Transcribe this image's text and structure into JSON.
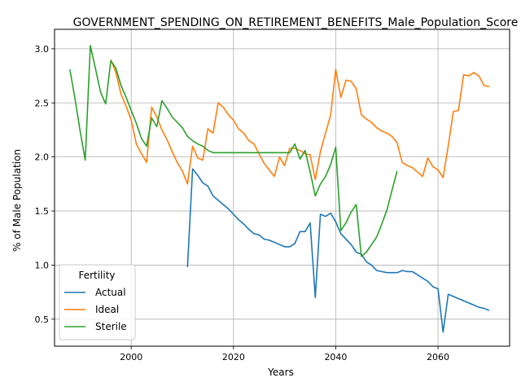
{
  "chart_data": {
    "type": "line",
    "title": "GOVERNMENT_SPENDING_ON_RETIREMENT_BENEFITS_Male_Population_Score",
    "xlabel": "Years",
    "ylabel": "% of Male Population",
    "xlim": [
      1985,
      2074
    ],
    "ylim": [
      0.25,
      3.18
    ],
    "xticks": [
      2000,
      2020,
      2040,
      2060
    ],
    "yticks": [
      0.5,
      1.0,
      1.5,
      2.0,
      2.5,
      3.0
    ],
    "xtick_labels": [
      "2000",
      "2020",
      "2040",
      "2060"
    ],
    "ytick_labels": [
      "0.5",
      "1.0",
      "1.5",
      "2.0",
      "2.5",
      "3.0"
    ],
    "grid": true,
    "legend": {
      "title": "Fertility",
      "position": "lower-left"
    },
    "series": [
      {
        "name": "Actual",
        "color": "#1f77b4",
        "points": [
          [
            2011,
            0.98
          ],
          [
            2012,
            1.89
          ],
          [
            2013,
            1.83
          ],
          [
            2014,
            1.76
          ],
          [
            2015,
            1.73
          ],
          [
            2016,
            1.64
          ],
          [
            2017,
            1.6
          ],
          [
            2018,
            1.56
          ],
          [
            2019,
            1.52
          ],
          [
            2020,
            1.47
          ],
          [
            2021,
            1.42
          ],
          [
            2022,
            1.38
          ],
          [
            2023,
            1.33
          ],
          [
            2024,
            1.29
          ],
          [
            2025,
            1.28
          ],
          [
            2026,
            1.24
          ],
          [
            2027,
            1.23
          ],
          [
            2028,
            1.21
          ],
          [
            2029,
            1.19
          ],
          [
            2030,
            1.17
          ],
          [
            2031,
            1.17
          ],
          [
            2032,
            1.2
          ],
          [
            2033,
            1.31
          ],
          [
            2034,
            1.31
          ],
          [
            2035,
            1.39
          ],
          [
            2036,
            0.7
          ],
          [
            2037,
            1.47
          ],
          [
            2038,
            1.45
          ],
          [
            2039,
            1.48
          ],
          [
            2040,
            1.4
          ],
          [
            2041,
            1.29
          ],
          [
            2042,
            1.24
          ],
          [
            2043,
            1.19
          ],
          [
            2044,
            1.12
          ],
          [
            2045,
            1.1
          ],
          [
            2046,
            1.03
          ],
          [
            2047,
            1.0
          ],
          [
            2048,
            0.95
          ],
          [
            2049,
            0.94
          ],
          [
            2050,
            0.93
          ],
          [
            2051,
            0.93
          ],
          [
            2052,
            0.93
          ],
          [
            2053,
            0.95
          ],
          [
            2054,
            0.94
          ],
          [
            2055,
            0.94
          ],
          [
            2056,
            0.91
          ],
          [
            2057,
            0.88
          ],
          [
            2058,
            0.85
          ],
          [
            2059,
            0.8
          ],
          [
            2060,
            0.78
          ],
          [
            2061,
            0.38
          ],
          [
            2062,
            0.73
          ],
          [
            2063,
            0.71
          ],
          [
            2064,
            0.69
          ],
          [
            2065,
            0.67
          ],
          [
            2066,
            0.65
          ],
          [
            2067,
            0.63
          ],
          [
            2068,
            0.61
          ],
          [
            2069,
            0.6
          ],
          [
            2070,
            0.58
          ]
        ]
      },
      {
        "name": "Ideal",
        "color": "#ff7f0e",
        "points": [
          [
            1996,
            2.9
          ],
          [
            1997,
            2.78
          ],
          [
            1998,
            2.58
          ],
          [
            1999,
            2.47
          ],
          [
            2000,
            2.34
          ],
          [
            2001,
            2.12
          ],
          [
            2002,
            2.03
          ],
          [
            2003,
            1.95
          ],
          [
            2004,
            2.46
          ],
          [
            2005,
            2.37
          ],
          [
            2006,
            2.25
          ],
          [
            2007,
            2.16
          ],
          [
            2008,
            2.05
          ],
          [
            2009,
            1.95
          ],
          [
            2010,
            1.87
          ],
          [
            2011,
            1.75
          ],
          [
            2012,
            2.1
          ],
          [
            2013,
            1.99
          ],
          [
            2014,
            1.97
          ],
          [
            2015,
            2.26
          ],
          [
            2016,
            2.22
          ],
          [
            2017,
            2.5
          ],
          [
            2018,
            2.46
          ],
          [
            2019,
            2.39
          ],
          [
            2020,
            2.34
          ],
          [
            2021,
            2.26
          ],
          [
            2022,
            2.22
          ],
          [
            2023,
            2.15
          ],
          [
            2024,
            2.12
          ],
          [
            2025,
            2.03
          ],
          [
            2026,
            1.94
          ],
          [
            2027,
            1.88
          ],
          [
            2028,
            1.82
          ],
          [
            2029,
            2.0
          ],
          [
            2030,
            1.92
          ],
          [
            2031,
            2.08
          ],
          [
            2032,
            2.08
          ],
          [
            2033,
            2.06
          ],
          [
            2034,
            2.03
          ],
          [
            2035,
            2.02
          ],
          [
            2036,
            1.79
          ],
          [
            2037,
            2.05
          ],
          [
            2038,
            2.22
          ],
          [
            2039,
            2.39
          ],
          [
            2040,
            2.81
          ],
          [
            2041,
            2.55
          ],
          [
            2042,
            2.71
          ],
          [
            2043,
            2.7
          ],
          [
            2044,
            2.63
          ],
          [
            2045,
            2.39
          ],
          [
            2046,
            2.35
          ],
          [
            2047,
            2.32
          ],
          [
            2048,
            2.27
          ],
          [
            2049,
            2.24
          ],
          [
            2050,
            2.22
          ],
          [
            2051,
            2.19
          ],
          [
            2052,
            2.13
          ],
          [
            2053,
            1.95
          ],
          [
            2054,
            1.92
          ],
          [
            2055,
            1.9
          ],
          [
            2056,
            1.86
          ],
          [
            2057,
            1.82
          ],
          [
            2058,
            1.99
          ],
          [
            2059,
            1.91
          ],
          [
            2060,
            1.88
          ],
          [
            2061,
            1.81
          ],
          [
            2062,
            2.1
          ],
          [
            2063,
            2.42
          ],
          [
            2064,
            2.43
          ],
          [
            2065,
            2.76
          ],
          [
            2066,
            2.75
          ],
          [
            2067,
            2.78
          ],
          [
            2068,
            2.75
          ],
          [
            2069,
            2.66
          ],
          [
            2070,
            2.65
          ]
        ]
      },
      {
        "name": "Sterile",
        "color": "#2ca02c",
        "points": [
          [
            1988,
            2.81
          ],
          [
            1989,
            2.54
          ],
          [
            1990,
            2.24
          ],
          [
            1991,
            1.97
          ],
          [
            1992,
            3.03
          ],
          [
            1993,
            2.82
          ],
          [
            1994,
            2.6
          ],
          [
            1995,
            2.49
          ],
          [
            1996,
            2.89
          ],
          [
            1997,
            2.82
          ],
          [
            1998,
            2.66
          ],
          [
            1999,
            2.55
          ],
          [
            2000,
            2.43
          ],
          [
            2001,
            2.31
          ],
          [
            2002,
            2.17
          ],
          [
            2003,
            2.1
          ],
          [
            2004,
            2.36
          ],
          [
            2005,
            2.28
          ],
          [
            2006,
            2.52
          ],
          [
            2007,
            2.45
          ],
          [
            2008,
            2.37
          ],
          [
            2009,
            2.32
          ],
          [
            2010,
            2.27
          ],
          [
            2011,
            2.19
          ],
          [
            2012,
            2.15
          ],
          [
            2013,
            2.12
          ],
          [
            2014,
            2.1
          ],
          [
            2015,
            2.06
          ],
          [
            2016,
            2.04
          ],
          [
            2017,
            2.04
          ],
          [
            2018,
            2.04
          ],
          [
            2019,
            2.04
          ],
          [
            2020,
            2.04
          ],
          [
            2021,
            2.04
          ],
          [
            2022,
            2.04
          ],
          [
            2023,
            2.04
          ],
          [
            2024,
            2.04
          ],
          [
            2025,
            2.04
          ],
          [
            2026,
            2.04
          ],
          [
            2027,
            2.04
          ],
          [
            2028,
            2.04
          ],
          [
            2029,
            2.04
          ],
          [
            2030,
            2.04
          ],
          [
            2031,
            2.04
          ],
          [
            2032,
            2.12
          ],
          [
            2033,
            1.98
          ],
          [
            2034,
            2.06
          ],
          [
            2035,
            1.86
          ],
          [
            2036,
            1.64
          ],
          [
            2037,
            1.75
          ],
          [
            2038,
            1.82
          ],
          [
            2039,
            1.93
          ],
          [
            2040,
            2.09
          ],
          [
            2041,
            1.32
          ],
          [
            2042,
            1.39
          ],
          [
            2043,
            1.49
          ],
          [
            2044,
            1.56
          ],
          [
            2045,
            1.08
          ],
          [
            2046,
            1.12
          ],
          [
            2047,
            1.19
          ],
          [
            2048,
            1.26
          ],
          [
            2049,
            1.38
          ],
          [
            2050,
            1.51
          ],
          [
            2051,
            1.69
          ],
          [
            2052,
            1.87
          ]
        ]
      }
    ]
  }
}
